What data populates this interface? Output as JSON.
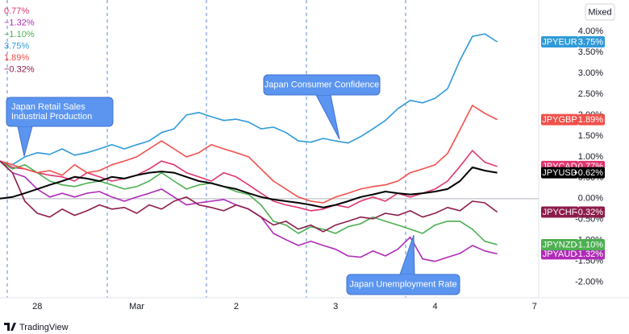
{
  "chart_data": {
    "type": "line",
    "x": [
      0,
      3,
      6,
      9,
      12,
      15,
      18,
      21,
      24,
      27,
      30,
      33,
      36,
      39,
      42,
      45,
      48,
      51,
      54,
      57,
      60,
      63,
      66,
      69,
      72,
      75,
      78,
      81,
      84,
      87,
      90,
      93,
      96,
      99,
      102,
      105,
      108,
      111,
      114,
      117,
      120
    ],
    "xlim": [
      0,
      130
    ],
    "xticks": [
      {
        "value": 9,
        "label": "28"
      },
      {
        "value": 33,
        "label": "Mar"
      },
      {
        "value": 57,
        "label": "2"
      },
      {
        "value": 81,
        "label": "3"
      },
      {
        "value": 105,
        "label": "4"
      },
      {
        "value": 129,
        "label": "7"
      }
    ],
    "ylim": [
      -2.37,
      4.75
    ],
    "yticks": [
      {
        "value": -2,
        "label": "-2.00%"
      },
      {
        "value": -1.5,
        "label": "-1.50%"
      },
      {
        "value": -1,
        "label": "-1.00%"
      },
      {
        "value": -0.5,
        "label": "-0.50%"
      },
      {
        "value": 0,
        "label": "0.00%"
      },
      {
        "value": 0.5,
        "label": "0.50%"
      },
      {
        "value": 1,
        "label": "1.00%"
      },
      {
        "value": 1.5,
        "label": "1.50%"
      },
      {
        "value": 2,
        "label": "2.00%"
      },
      {
        "value": 2.5,
        "label": "2.50%"
      },
      {
        "value": 3,
        "label": "3.00%"
      },
      {
        "value": 3.5,
        "label": "3.50%"
      },
      {
        "value": 4,
        "label": "4.00%"
      }
    ],
    "series": [
      {
        "name": "JPYCAD",
        "color": "#e0356e",
        "legend_label": "0.77%",
        "last_value_label": "0.77%",
        "values": [
          0.9,
          0.75,
          0.71,
          0.62,
          0.56,
          0.52,
          0.42,
          0.62,
          0.52,
          0.42,
          0.48,
          0.56,
          0.71,
          0.9,
          0.81,
          0.62,
          0.52,
          0.42,
          0.62,
          0.52,
          0.33,
          0.13,
          -0.06,
          -0.15,
          -0.21,
          -0.29,
          -0.25,
          -0.15,
          -0.21,
          -0.06,
          0.04,
          -0.06,
          0.13,
          0.04,
          0.13,
          0.23,
          0.42,
          0.77,
          1.15,
          0.87,
          0.77
        ]
      },
      {
        "name": "JPYAUD",
        "color": "#b02ab8",
        "legend_label": "−1.32%",
        "last_value_label": "-1.32%",
        "values": [
          0.9,
          0.62,
          0.52,
          0.23,
          0.04,
          0.13,
          0.04,
          0.13,
          0.17,
          0.04,
          -0.06,
          0.04,
          0.13,
          0.23,
          0.04,
          -0.15,
          -0.1,
          -0.06,
          -0.02,
          -0.15,
          -0.25,
          -0.44,
          -0.83,
          -0.98,
          -1.12,
          -1.02,
          -1.12,
          -1.21,
          -1.37,
          -1.4,
          -1.25,
          -1.37,
          -1.21,
          -0.92,
          -1.44,
          -1.5,
          -1.4,
          -1.31,
          -1.12,
          -1.25,
          -1.32
        ]
      },
      {
        "name": "JPYNZD",
        "color": "#4caf50",
        "legend_label": "−1.10%",
        "last_value_label": "-1.10%",
        "values": [
          0.9,
          0.71,
          0.81,
          0.62,
          0.42,
          0.33,
          0.29,
          0.37,
          0.42,
          0.33,
          0.23,
          0.29,
          0.42,
          0.62,
          0.42,
          0.23,
          0.33,
          0.37,
          0.29,
          0.17,
          0.1,
          -0.15,
          -0.54,
          -0.63,
          -0.83,
          -0.67,
          -0.73,
          -0.83,
          -0.67,
          -0.6,
          -0.44,
          -0.54,
          -0.63,
          -0.73,
          -0.83,
          -0.63,
          -0.54,
          -0.54,
          -0.73,
          -1.02,
          -1.1
        ]
      },
      {
        "name": "JPYEUR",
        "color": "#2f9ad9",
        "legend_label": "3.75%",
        "last_value_label": "3.75%",
        "values": [
          0.9,
          0.81,
          1.0,
          1.1,
          1.06,
          1.19,
          1.04,
          1.1,
          1.19,
          1.29,
          1.19,
          1.29,
          1.38,
          1.58,
          1.67,
          2.0,
          2.06,
          1.96,
          1.87,
          1.9,
          1.83,
          1.67,
          1.71,
          1.58,
          1.38,
          1.35,
          1.44,
          1.38,
          1.33,
          1.48,
          1.67,
          1.87,
          2.15,
          2.35,
          2.29,
          2.4,
          2.63,
          3.31,
          3.88,
          3.94,
          3.75
        ]
      },
      {
        "name": "JPYGBP",
        "color": "#f0504a",
        "legend_label": "1.89%",
        "last_value_label": "1.89%",
        "values": [
          0.9,
          0.81,
          0.71,
          0.62,
          0.67,
          0.56,
          0.81,
          0.62,
          0.67,
          0.81,
          0.9,
          1.0,
          1.19,
          1.38,
          1.19,
          1.0,
          1.1,
          1.29,
          1.19,
          1.1,
          1.0,
          0.71,
          0.42,
          0.23,
          0.04,
          -0.06,
          -0.1,
          0.04,
          0.13,
          0.23,
          0.29,
          0.33,
          0.42,
          0.62,
          0.71,
          0.81,
          1.08,
          1.65,
          2.23,
          2.04,
          1.89
        ]
      },
      {
        "name": "JPYCHF",
        "color": "#8c1c4c",
        "legend_label": "−0.32%",
        "last_value_label": "-0.32%",
        "values": [
          0.9,
          0.62,
          -0.06,
          -0.35,
          -0.44,
          -0.25,
          -0.4,
          -0.29,
          -0.15,
          -0.25,
          -0.21,
          -0.35,
          -0.15,
          -0.25,
          -0.06,
          0.04,
          -0.15,
          -0.21,
          -0.29,
          -0.15,
          -0.25,
          -0.44,
          -0.63,
          -0.54,
          -0.73,
          -0.63,
          -0.79,
          -0.63,
          -0.54,
          -0.44,
          -0.48,
          -0.35,
          -0.4,
          -0.29,
          -0.44,
          -0.35,
          -0.21,
          -0.29,
          -0.06,
          -0.1,
          -0.32
        ]
      },
      {
        "name": "JPYUSD",
        "color": "#000000",
        "last_value_label": "+0.62%",
        "values": [
          0.0,
          0.04,
          0.13,
          0.23,
          0.33,
          0.42,
          0.52,
          0.48,
          0.42,
          0.52,
          0.48,
          0.56,
          0.62,
          0.65,
          0.62,
          0.52,
          0.42,
          0.37,
          0.29,
          0.23,
          0.13,
          0.04,
          -0.02,
          -0.06,
          -0.1,
          -0.15,
          -0.21,
          -0.15,
          -0.06,
          0.04,
          0.1,
          0.17,
          0.13,
          0.1,
          0.13,
          0.17,
          0.23,
          0.42,
          0.75,
          0.67,
          0.62
        ]
      }
    ],
    "annotations": [
      {
        "text": [
          "Japan Retail Sales",
          "Industrial Production"
        ]
      },
      {
        "text": [
          "Japan Consumer Confidence"
        ]
      },
      {
        "text": [
          "Japan Unemployment Rate"
        ]
      }
    ],
    "scale_button": "Mixed",
    "logo_text": "TradingView"
  }
}
